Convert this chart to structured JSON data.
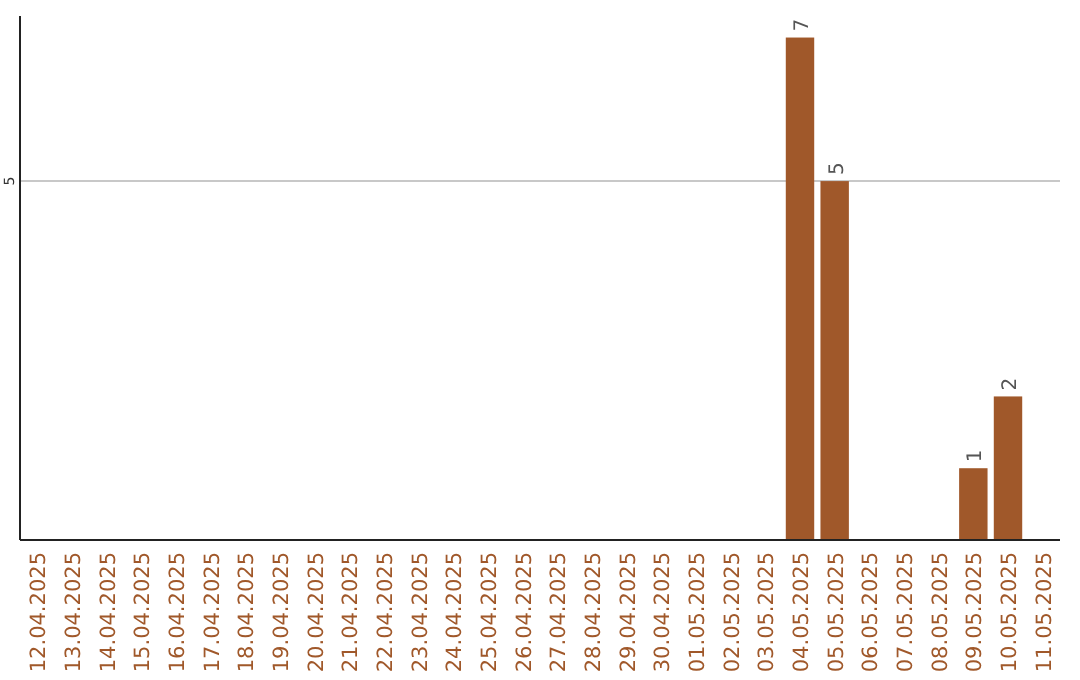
{
  "chart_data": {
    "type": "bar",
    "categories": [
      "12.04.2025",
      "13.04.2025",
      "14.04.2025",
      "15.04.2025",
      "16.04.2025",
      "17.04.2025",
      "18.04.2025",
      "19.04.2025",
      "20.04.2025",
      "21.04.2025",
      "22.04.2025",
      "23.04.2025",
      "24.04.2025",
      "25.04.2025",
      "26.04.2025",
      "27.04.2025",
      "28.04.2025",
      "29.04.2025",
      "30.04.2025",
      "01.05.2025",
      "02.05.2025",
      "03.05.2025",
      "04.05.2025",
      "05.05.2025",
      "06.05.2025",
      "07.05.2025",
      "08.05.2025",
      "09.05.2025",
      "10.05.2025",
      "11.05.2025"
    ],
    "values": [
      null,
      null,
      null,
      null,
      null,
      null,
      null,
      null,
      null,
      null,
      null,
      null,
      null,
      null,
      null,
      null,
      null,
      null,
      null,
      null,
      null,
      null,
      7,
      5,
      null,
      null,
      null,
      1,
      2,
      null
    ],
    "color": "#a0582a",
    "ylim": [
      0,
      7.3
    ],
    "yticks": [
      5
    ],
    "grid": "y",
    "data_labels": true
  }
}
